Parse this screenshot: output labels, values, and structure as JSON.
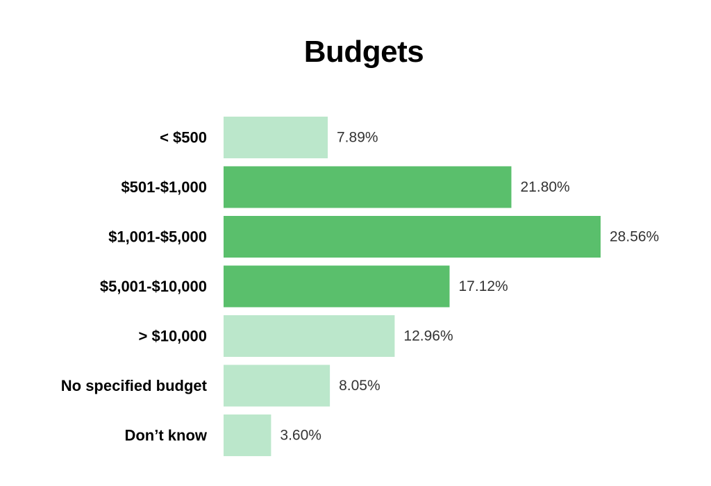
{
  "chart_data": {
    "type": "bar",
    "orientation": "horizontal",
    "title": "Budgets",
    "categories": [
      "< $500",
      "$501-$1,000",
      "$1,001-$5,000",
      "$5,001-$10,000",
      "> $10,000",
      "No specified budget",
      "Don’t know"
    ],
    "values": [
      7.89,
      21.8,
      28.56,
      17.12,
      12.96,
      8.05,
      3.6
    ],
    "value_labels": [
      "7.89%",
      "21.80%",
      "28.56%",
      "17.12%",
      "12.96%",
      "8.05%",
      "3.60%"
    ],
    "highlighted": [
      false,
      true,
      true,
      true,
      false,
      false,
      false
    ],
    "colors": {
      "highlight": "#5abf6c",
      "normal": "#bbe7cb"
    },
    "xlim": [
      0,
      28.56
    ],
    "grid": false,
    "legend": "none"
  }
}
